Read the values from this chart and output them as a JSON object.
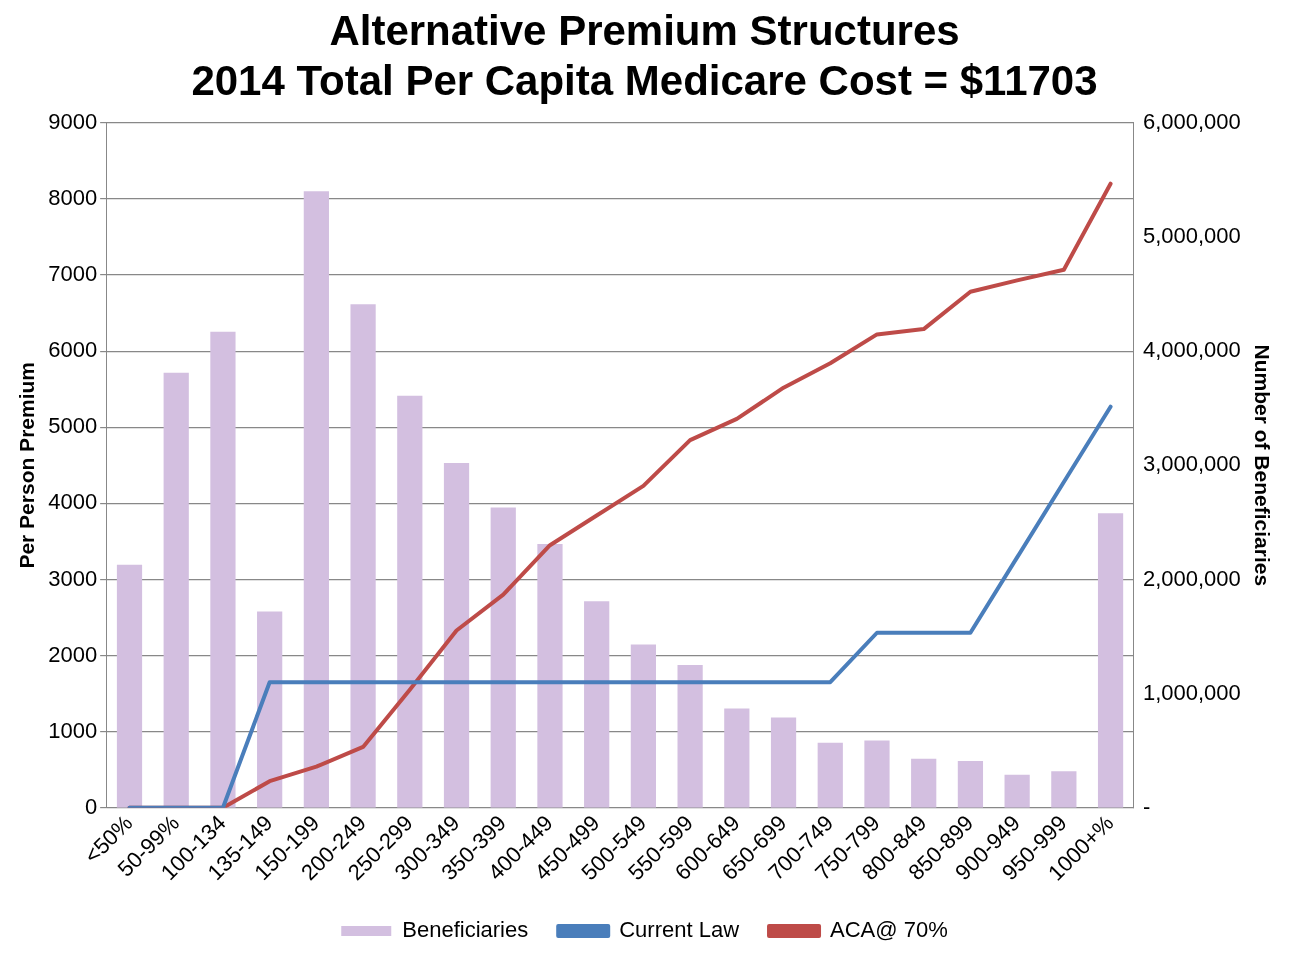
{
  "chart_data": {
    "type": "bar",
    "title": "Alternative Premium Structures\n2014 Total Per Capita Medicare Cost = $11703",
    "categories": [
      "<50%",
      "50-99%",
      "100-134",
      "135-149",
      "150-199",
      "200-249",
      "250-299",
      "300-349",
      "350-399",
      "400-449",
      "450-499",
      "500-549",
      "550-599",
      "600-649",
      "650-699",
      "700-749",
      "750-799",
      "800-849",
      "850-899",
      "900-949",
      "950-999",
      "1000+%"
    ],
    "series": [
      {
        "name": "Beneficiaries",
        "axis": "y2",
        "color": "#d3bfe0",
        "values": [
          2130000,
          3810000,
          4170000,
          1720000,
          5400000,
          4410000,
          3610000,
          3020000,
          2630000,
          2310000,
          1810000,
          1430000,
          1250000,
          870000,
          790000,
          570000,
          590000,
          430000,
          410000,
          290000,
          320000,
          2580000
        ]
      },
      {
        "name": "Current Law",
        "type": "line",
        "color": "#4a7ebb",
        "values": [
          0,
          0,
          0,
          1650,
          1650,
          1650,
          1650,
          1650,
          1650,
          1650,
          1650,
          1650,
          1650,
          1650,
          1650,
          1650,
          2300,
          2300,
          2300,
          3290,
          4280,
          5270
        ]
      },
      {
        "name": "ACA@ 70%",
        "type": "line",
        "color": "#be4b48",
        "values": [
          0,
          0,
          0,
          350,
          540,
          800,
          1550,
          2330,
          2800,
          3450,
          3840,
          4230,
          4830,
          5110,
          5520,
          5840,
          6220,
          6290,
          6780,
          6930,
          7070,
          8200
        ]
      }
    ],
    "ylabel": "Per Person Premium",
    "y2label": "Number of Beneficiaries",
    "ylim": [
      0,
      9000
    ],
    "yticks": [
      0,
      1000,
      2000,
      3000,
      4000,
      5000,
      6000,
      7000,
      8000,
      9000
    ],
    "y2lim": [
      0,
      6000000
    ],
    "y2ticks": [
      {
        "value": 0,
        "label": "-"
      },
      {
        "value": 1000000,
        "label": "1,000,000"
      },
      {
        "value": 2000000,
        "label": "2,000,000"
      },
      {
        "value": 3000000,
        "label": "3,000,000"
      },
      {
        "value": 4000000,
        "label": "4,000,000"
      },
      {
        "value": 5000000,
        "label": "5,000,000"
      },
      {
        "value": 6000000,
        "label": "6,000,000"
      }
    ],
    "grid": "y",
    "legend": "bottom",
    "marker": "none"
  }
}
